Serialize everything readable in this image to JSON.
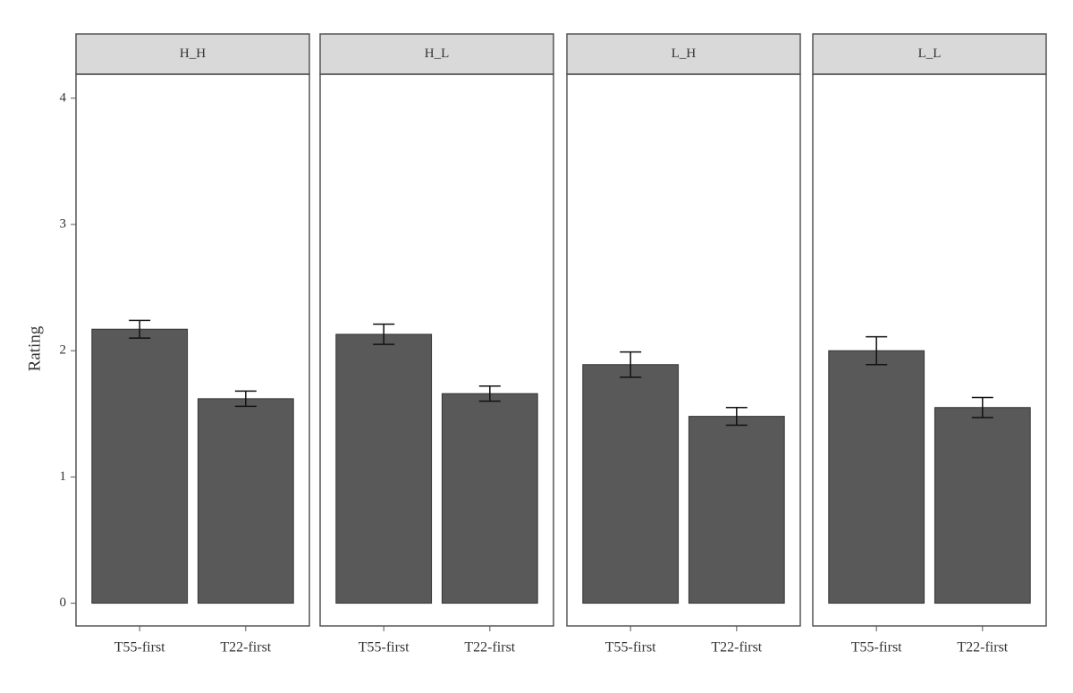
{
  "chart_data": {
    "type": "bar",
    "ylabel": "Rating",
    "color": "#595959",
    "ylim": [
      -0.18,
      4.19
    ],
    "yticks": [
      0,
      1,
      2,
      3,
      4
    ],
    "grid": false,
    "facets": [
      {
        "title": "H_H",
        "categories": [
          "T55-first",
          "T22-first"
        ],
        "values": [
          2.17,
          1.62
        ],
        "errors": [
          0.07,
          0.06
        ]
      },
      {
        "title": "H_L",
        "categories": [
          "T55-first",
          "T22-first"
        ],
        "values": [
          2.13,
          1.66
        ],
        "errors": [
          0.08,
          0.06
        ]
      },
      {
        "title": "L_H",
        "categories": [
          "T55-first",
          "T22-first"
        ],
        "values": [
          1.89,
          1.48
        ],
        "errors": [
          0.1,
          0.07
        ]
      },
      {
        "title": "L_L",
        "categories": [
          "T55-first",
          "T22-first"
        ],
        "values": [
          2.0,
          1.55
        ],
        "errors": [
          0.11,
          0.08
        ]
      }
    ]
  }
}
